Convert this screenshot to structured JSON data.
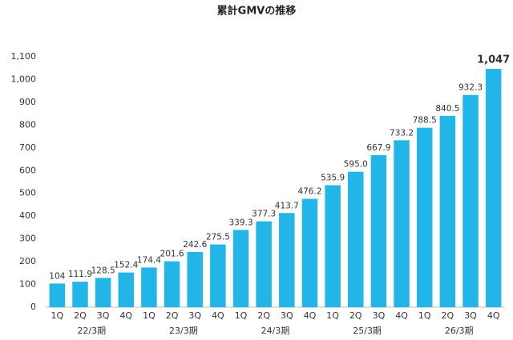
{
  "chart_data": {
    "type": "bar",
    "title": "累計GMVの推移",
    "categories": [
      "1Q",
      "2Q",
      "3Q",
      "4Q",
      "1Q",
      "2Q",
      "3Q",
      "4Q",
      "1Q",
      "2Q",
      "3Q",
      "4Q",
      "1Q",
      "2Q",
      "3Q",
      "4Q",
      "1Q",
      "2Q",
      "3Q",
      "4Q"
    ],
    "category_groups": [
      "22/3期",
      "23/3期",
      "24/3期",
      "25/3期",
      "26/3期"
    ],
    "values": [
      104,
      111.9,
      128.5,
      152.4,
      174.4,
      201.6,
      242.6,
      275.5,
      339.3,
      377.3,
      413.7,
      476.2,
      535.9,
      595.0,
      667.9,
      733.2,
      788.5,
      840.5,
      932.3,
      1047
    ],
    "value_labels": [
      "104",
      "111.9",
      "128.5",
      "152.4",
      "174.4",
      "201.6",
      "242.6",
      "275.5",
      "339.3",
      "377.3",
      "413.7",
      "476.2",
      "535.9",
      "595.0",
      "667.9",
      "733.2",
      "788.5",
      "840.5",
      "932.3",
      "1,047"
    ],
    "color": "#22b5e8",
    "ylim": [
      0,
      1100
    ],
    "yticks": [
      0,
      100,
      200,
      300,
      400,
      500,
      600,
      700,
      800,
      900,
      {
        "value": 1000,
        "label": "1,000"
      },
      {
        "value": 1100,
        "label": "1,100"
      }
    ],
    "grid": false
  }
}
